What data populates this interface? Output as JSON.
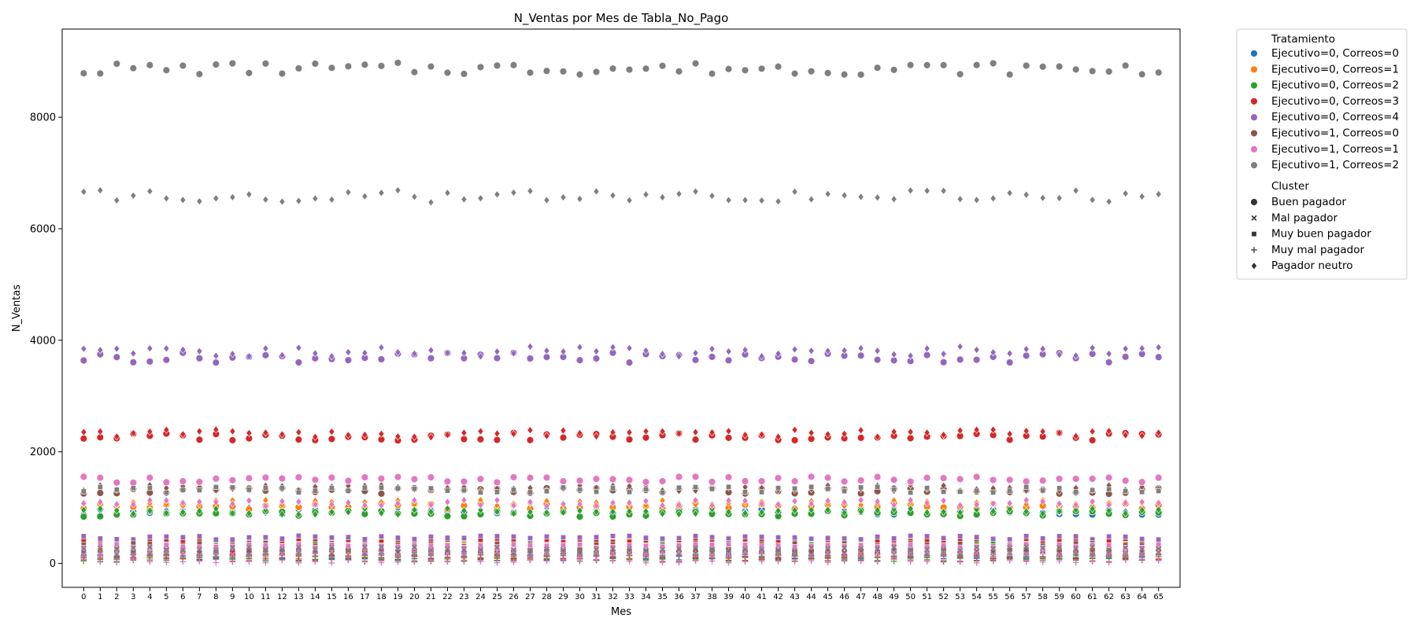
{
  "chart_data": {
    "type": "scatter",
    "title": "N_Ventas por Mes de Tabla_No_Pago",
    "xlabel": "Mes",
    "ylabel": "N_Ventas",
    "x": [
      0,
      1,
      2,
      3,
      4,
      5,
      6,
      7,
      8,
      9,
      10,
      11,
      12,
      13,
      14,
      15,
      16,
      17,
      18,
      19,
      20,
      21,
      22,
      23,
      24,
      25,
      26,
      27,
      28,
      29,
      30,
      31,
      32,
      33,
      34,
      35,
      36,
      37,
      38,
      39,
      40,
      41,
      42,
      43,
      44,
      45,
      46,
      47,
      48,
      49,
      50,
      51,
      52,
      53,
      54,
      55,
      56,
      57,
      58,
      59,
      60,
      61,
      62,
      63,
      64,
      65
    ],
    "x_tick_labels": [
      "0",
      "1",
      "2",
      "3",
      "4",
      "5",
      "6",
      "7",
      "8",
      "9",
      "10",
      "11",
      "12",
      "13",
      "14",
      "15",
      "16",
      "17",
      "18",
      "19",
      "20",
      "21",
      "22",
      "23",
      "24",
      "25",
      "26",
      "27",
      "28",
      "29",
      "30",
      "31",
      "32",
      "33",
      "34",
      "35",
      "36",
      "37",
      "38",
      "39",
      "40",
      "41",
      "42",
      "43",
      "44",
      "45",
      "46",
      "47",
      "48",
      "49",
      "50",
      "51",
      "52",
      "53",
      "54",
      "55",
      "56",
      "57",
      "58",
      "59",
      "60",
      "61",
      "62",
      "63",
      "64",
      "65"
    ],
    "xlim": [
      -1.3,
      66.3
    ],
    "ylim": [
      -430,
      9580
    ],
    "y_ticks": [
      0,
      2000,
      4000,
      6000,
      8000
    ],
    "y_tick_labels": [
      "0",
      "2000",
      "4000",
      "6000",
      "8000"
    ],
    "grid": false,
    "legend_position": "outside-right",
    "hue_legend_title": "Tratamiento",
    "style_legend_title": "Cluster",
    "treatments": [
      {
        "name": "Ejecutivo=0, Correos=0",
        "color": "#1f77b4",
        "base": {
          "Buen pagador": 920,
          "Mal pagador": 210,
          "Muy buen pagador": 360,
          "Muy mal pagador": 80,
          "Pagador neutro": 960
        }
      },
      {
        "name": "Ejecutivo=0, Correos=1",
        "color": "#ff7f0e",
        "base": {
          "Buen pagador": 1020,
          "Mal pagador": 240,
          "Muy buen pagador": 380,
          "Muy mal pagador": 110,
          "Pagador neutro": 1080
        }
      },
      {
        "name": "Ejecutivo=0, Correos=2",
        "color": "#2ca02c",
        "base": {
          "Buen pagador": 890,
          "Mal pagador": 200,
          "Muy buen pagador": 340,
          "Muy mal pagador": 70,
          "Pagador neutro": 930
        }
      },
      {
        "name": "Ejecutivo=0, Correos=3",
        "color": "#d62728",
        "base": {
          "Buen pagador": 2270,
          "Mal pagador": 270,
          "Muy buen pagador": 420,
          "Muy mal pagador": 120,
          "Pagador neutro": 2330
        }
      },
      {
        "name": "Ejecutivo=0, Correos=4",
        "color": "#9467bd",
        "base": {
          "Buen pagador": 3690,
          "Mal pagador": 290,
          "Muy buen pagador": 460,
          "Muy mal pagador": 150,
          "Pagador neutro": 3800
        }
      },
      {
        "name": "Ejecutivo=1, Correos=0",
        "color": "#8c564b",
        "base": {
          "Buen pagador": 1300,
          "Mal pagador": 230,
          "Muy buen pagador": 330,
          "Muy mal pagador": 60,
          "Pagador neutro": 1350
        }
      },
      {
        "name": "Ejecutivo=1, Correos=1",
        "color": "#e377c2",
        "base": {
          "Buen pagador": 1500,
          "Mal pagador": 180,
          "Muy buen pagador": 310,
          "Muy mal pagador": 40,
          "Pagador neutro": 1080
        }
      },
      {
        "name": "Ejecutivo=1, Correos=2",
        "color": "#7f7f7f",
        "base": {
          "Buen pagador": 8870,
          "Mal pagador": 260,
          "Muy buen pagador": 1320,
          "Muy mal pagador": 130,
          "Pagador neutro": 6580
        }
      }
    ],
    "clusters": [
      {
        "name": "Buen pagador",
        "marker": "circle"
      },
      {
        "name": "Mal pagador",
        "marker": "x"
      },
      {
        "name": "Muy buen pagador",
        "marker": "square"
      },
      {
        "name": "Muy mal pagador",
        "marker": "plus"
      },
      {
        "name": "Pagador neutro",
        "marker": "diamond"
      }
    ]
  }
}
